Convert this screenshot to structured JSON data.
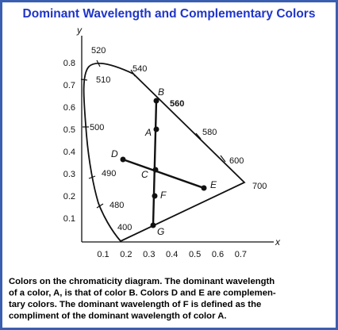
{
  "title": "Dominant Wavelength and Complementary Colors",
  "axes": {
    "x_label": "x",
    "y_label": "y",
    "x_ticks": [
      "0.1",
      "0.2",
      "0.3",
      "0.4",
      "0.5",
      "0.6",
      "0.7"
    ],
    "y_ticks": [
      "0.1",
      "0.2",
      "0.3",
      "0.4",
      "0.5",
      "0.6",
      "0.7",
      "0.8"
    ]
  },
  "wavelengths": [
    "400",
    "480",
    "490",
    "500",
    "510",
    "520",
    "540",
    "560",
    "580",
    "600",
    "700"
  ],
  "points": [
    "A",
    "B",
    "C",
    "D",
    "E",
    "F",
    "G"
  ],
  "caption": [
    "Colors on the chromaticity diagram.  The dominant wavelength",
    "of a color, A, is that of color B.  Colors D and E are complemen-",
    "tary colors.  The dominant wavelength of F is defined as the",
    "compliment of the dominant wavelength of color A."
  ]
}
